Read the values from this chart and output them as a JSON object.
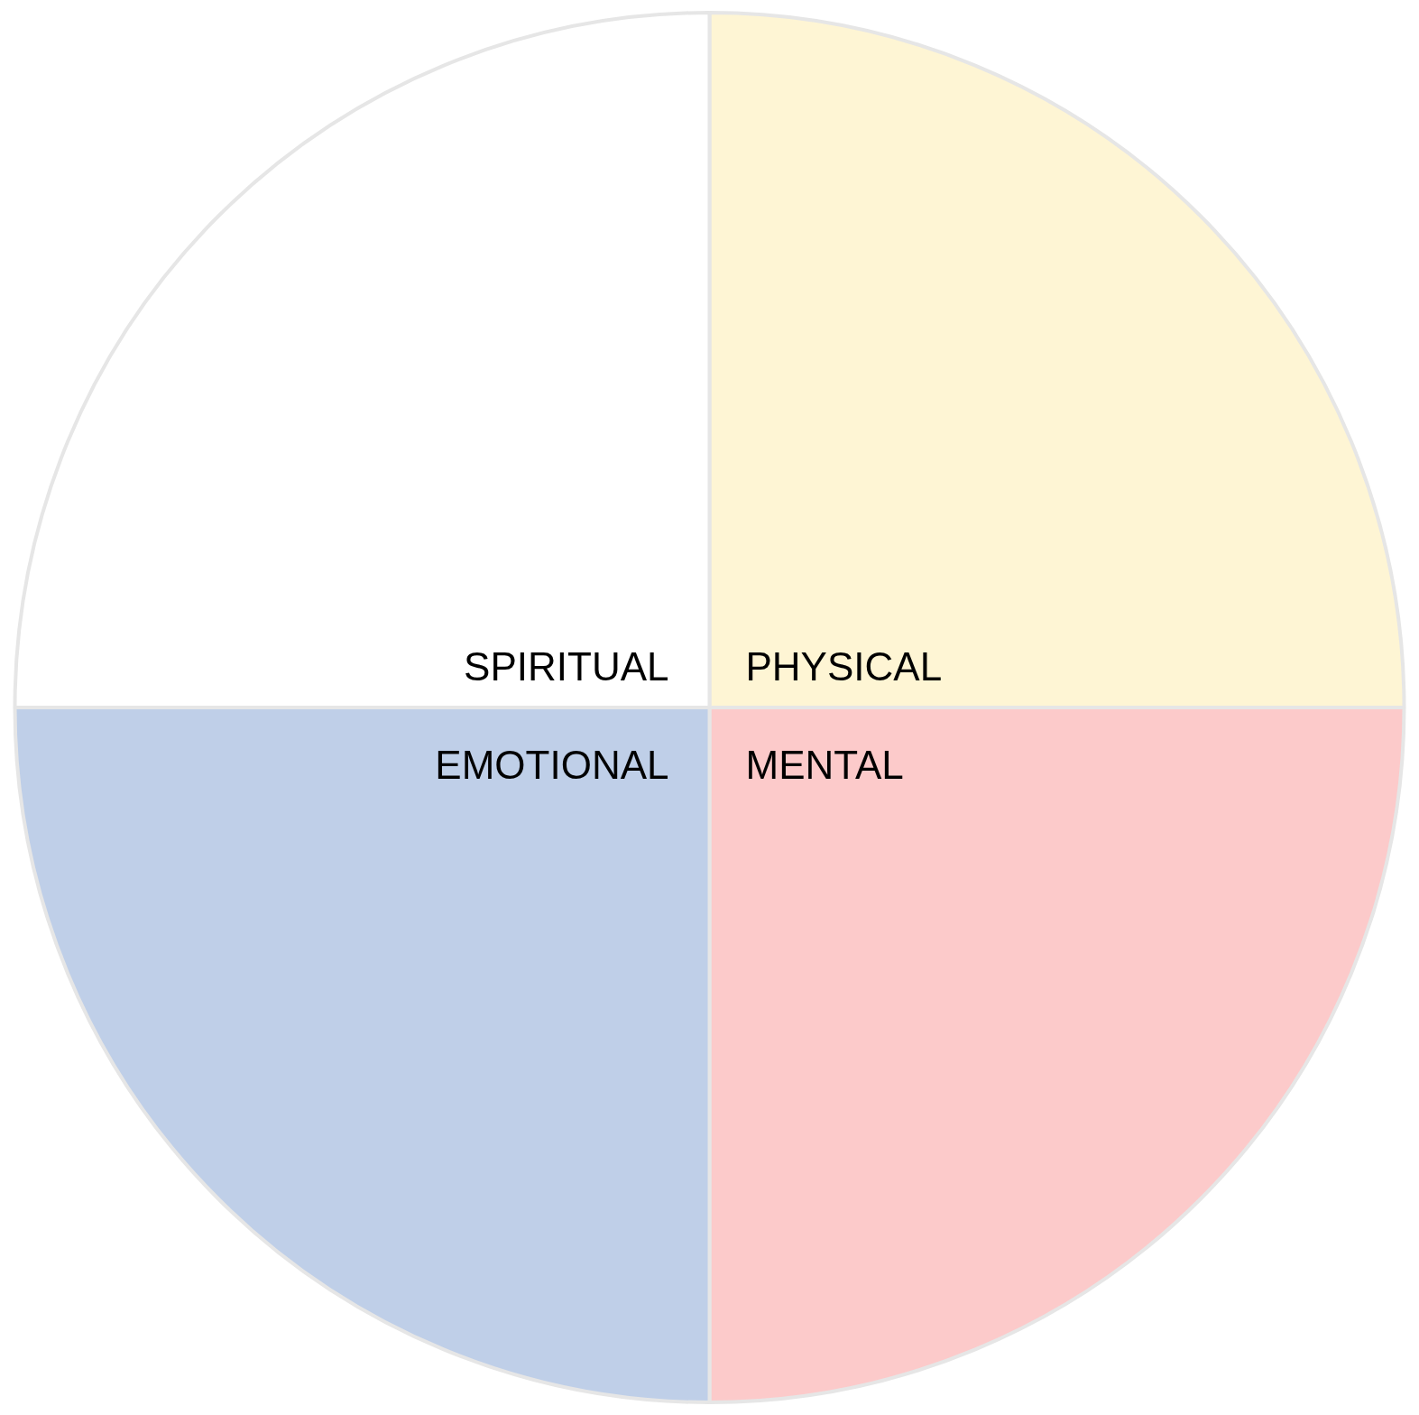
{
  "chart_data": {
    "type": "pie",
    "categories": [
      "PHYSICAL",
      "MENTAL",
      "EMOTIONAL",
      "SPIRITUAL"
    ],
    "values": [
      25,
      25,
      25,
      25
    ],
    "colors": [
      "#fef5d4",
      "#fccaca",
      "#bfcfe8",
      "#ffffff"
    ],
    "legend": false
  }
}
